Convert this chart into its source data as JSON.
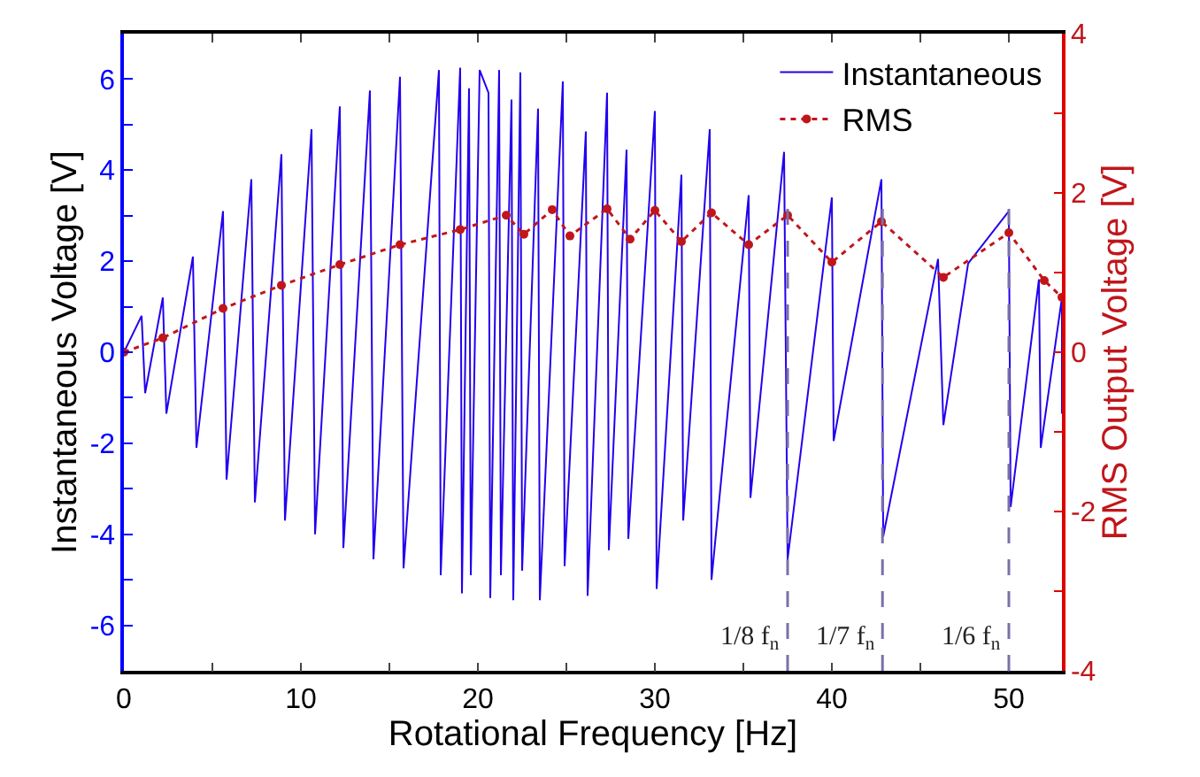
{
  "chart_data": {
    "type": "line",
    "xlabel": "Rotational Frequency [Hz]",
    "ylabel": "Instantaneous Voltage [V]",
    "y2label": "RMS Output Voltage [V]",
    "xlim": [
      0,
      53
    ],
    "xticks": [
      0,
      {
        "value": 5,
        "label": null
      },
      10,
      {
        "value": 15,
        "label": null
      },
      20,
      {
        "value": 25,
        "label": null
      },
      30,
      {
        "value": 35,
        "label": null
      },
      40,
      {
        "value": 45,
        "label": null
      },
      50
    ],
    "ylim": [
      -7,
      7
    ],
    "yticks": [
      {
        "value": -7,
        "label": null
      },
      -6,
      {
        "value": -5,
        "label": null
      },
      -4,
      {
        "value": -3,
        "label": null
      },
      -2,
      {
        "value": -1,
        "label": null
      },
      0,
      {
        "value": 1,
        "label": null
      },
      2,
      {
        "value": 3,
        "label": null
      },
      4,
      {
        "value": 5,
        "label": null
      },
      6,
      {
        "value": 7,
        "label": null
      }
    ],
    "y2lim": [
      -4,
      4
    ],
    "y2ticks": [
      -4,
      {
        "value": -3,
        "label": null
      },
      -2,
      {
        "value": -1,
        "label": null
      },
      0,
      {
        "value": 1,
        "label": null
      },
      2,
      {
        "value": 3,
        "label": null
      },
      4
    ],
    "legend": "top right",
    "series": [
      {
        "name": "Instantaneous",
        "color": "#2200ee",
        "marker": "none",
        "line_style": "solid",
        "x": [
          0,
          1.0,
          1.2,
          2.2,
          2.4,
          3.9,
          4.1,
          5.6,
          5.8,
          7.2,
          7.4,
          8.9,
          9.1,
          10.6,
          10.8,
          12.2,
          12.4,
          13.9,
          14.1,
          15.6,
          15.8,
          17.8,
          17.9,
          19.0,
          19.1,
          19.5,
          19.6,
          20.1,
          20.6,
          20.7,
          21.2,
          21.3,
          21.9,
          22.0,
          22.4,
          22.5,
          23.4,
          23.5,
          24.8,
          24.9,
          26.1,
          26.2,
          27.3,
          27.4,
          28.4,
          28.5,
          30.0,
          30.1,
          31.5,
          31.6,
          33.1,
          33.2,
          35.3,
          35.4,
          37.3,
          37.5,
          40.0,
          40.1,
          42.8,
          42.9,
          46.0,
          46.3,
          47.7,
          50.0,
          50.1,
          51.7,
          51.8,
          53.0,
          53.0
        ],
        "values": [
          0,
          0.8,
          -0.9,
          1.2,
          -1.35,
          2.1,
          -2.1,
          3.1,
          -2.8,
          3.8,
          -3.3,
          4.35,
          -3.7,
          4.9,
          -4.0,
          5.4,
          -4.3,
          5.75,
          -4.55,
          6.05,
          -4.75,
          6.2,
          -4.9,
          6.25,
          -5.3,
          5.8,
          -4.9,
          6.2,
          5.7,
          -5.4,
          6.2,
          -4.9,
          5.55,
          -5.45,
          6.15,
          -4.8,
          5.35,
          -5.45,
          5.95,
          -4.7,
          4.85,
          -5.35,
          5.7,
          -4.35,
          4.45,
          -4.1,
          5.3,
          -5.2,
          3.9,
          -3.7,
          4.9,
          -5.0,
          3.45,
          -3.2,
          4.4,
          -4.55,
          3.4,
          -1.95,
          3.8,
          -4.05,
          2.05,
          -1.6,
          1.95,
          3.1,
          -3.4,
          1.6,
          -2.1,
          1.2,
          -1.35
        ]
      },
      {
        "name": "RMS",
        "color": "#c0161b",
        "axis": "y2",
        "marker": "circle",
        "line_style": "dotted",
        "x": [
          0,
          2.2,
          5.6,
          8.9,
          12.2,
          15.6,
          19.0,
          21.6,
          22.6,
          24.2,
          25.2,
          27.3,
          28.6,
          30.0,
          31.5,
          33.2,
          35.3,
          37.5,
          40.0,
          42.8,
          46.3,
          50.0,
          52.0,
          53.0
        ],
        "values": [
          0,
          0.18,
          0.55,
          0.84,
          1.1,
          1.35,
          1.54,
          1.72,
          1.48,
          1.79,
          1.46,
          1.8,
          1.42,
          1.78,
          1.39,
          1.75,
          1.35,
          1.72,
          1.13,
          1.64,
          0.94,
          1.5,
          0.9,
          0.69
        ]
      }
    ],
    "ref_lines": [
      {
        "axis": "x",
        "value": 37.5,
        "label": "1/8 f$_{n}$",
        "color": "#7a70a8",
        "line_style": "dashed"
      },
      {
        "axis": "x",
        "value": 42.86,
        "label": "1/7 f$_{n}$",
        "color": "#7a70a8",
        "line_style": "dashed"
      },
      {
        "axis": "x",
        "value": 50,
        "label": "1/6 f$_{n}$",
        "color": "#7a70a8",
        "line_style": "dashed"
      }
    ]
  }
}
